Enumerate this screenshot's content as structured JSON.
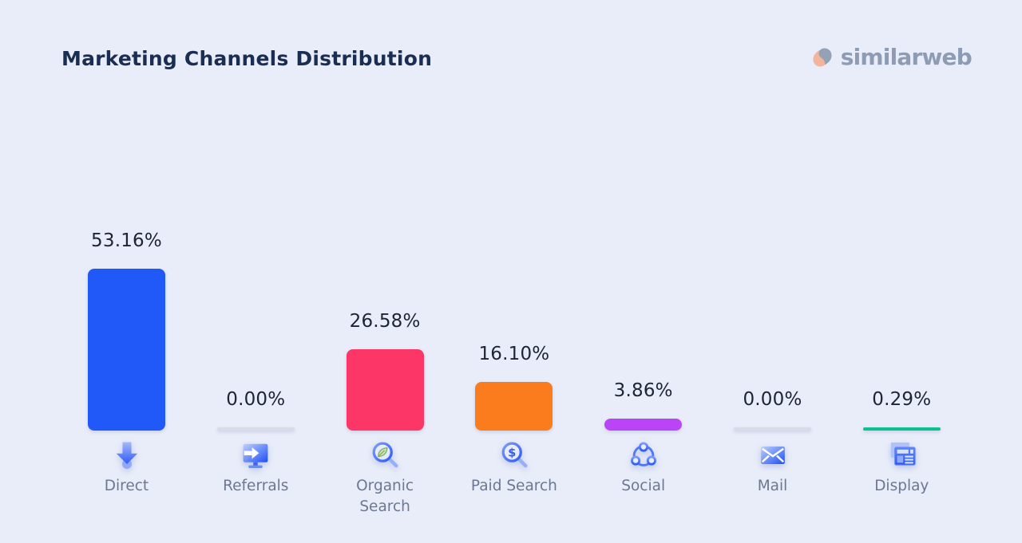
{
  "header": {
    "title": "Marketing Channels Distribution",
    "logo_text": "similarweb"
  },
  "colors": {
    "background": "#E9EDF9",
    "title_text": "#1A2D52",
    "value_text": "#1D2433",
    "label_text": "#6C7891",
    "logo_text": "#8E9CB3",
    "logo_orange": "#F2B49C",
    "logo_gray": "#93A2B7",
    "icon_blue": "#2E5CF7",
    "zero_bar": "#D8DCE6"
  },
  "chart_data": {
    "type": "bar",
    "title": "Marketing Channels Distribution",
    "unit": "%",
    "categories": [
      "Direct",
      "Referrals",
      "Organic Search",
      "Paid Search",
      "Social",
      "Mail",
      "Display"
    ],
    "values": [
      53.16,
      0.0,
      26.58,
      16.1,
      3.86,
      0.0,
      0.29
    ],
    "value_labels": [
      "53.16%",
      "0.00%",
      "26.58%",
      "16.10%",
      "3.86%",
      "0.00%",
      "0.29%"
    ],
    "bar_colors": [
      "#2158F8",
      "#D8DCE6",
      "#FC3768",
      "#FB7C1D",
      "#BA45F7",
      "#D8DCE6",
      "#0BC18E"
    ],
    "icons": [
      "direct-arrow-down-icon",
      "referrals-monitor-arrow-icon",
      "organic-search-magnifier-leaf-icon",
      "paid-search-magnifier-dollar-icon",
      "social-share-network-icon",
      "mail-envelope-icon",
      "display-ad-windows-icon"
    ],
    "ylim": [
      0,
      100
    ],
    "grid": false,
    "legend": false,
    "orientation": "vertical",
    "value_label_position": "above-bar"
  }
}
